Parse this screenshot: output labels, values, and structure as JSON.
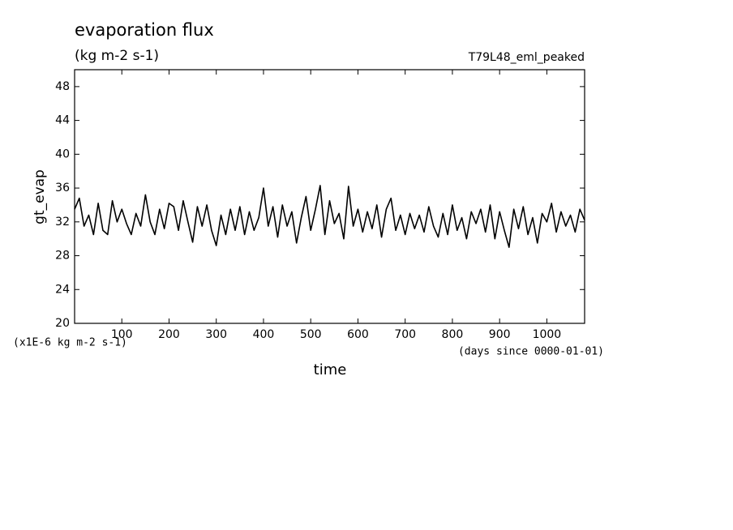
{
  "chart_data": {
    "type": "line",
    "title": "evaporation flux",
    "subtitle": "(kg m-2 s-1)",
    "annotation": "T79L48_eml_peaked",
    "ylabel": "gt_evap",
    "xlabel": "time",
    "yunit": "(x1E-6 kg m-2 s-1)",
    "xunit": "(days since 0000-01-01)",
    "color": "#000000",
    "xlim": [
      0,
      1080
    ],
    "ylim": [
      20,
      50
    ],
    "xticks": [
      100,
      200,
      300,
      400,
      500,
      600,
      700,
      800,
      900,
      1000
    ],
    "yticks": [
      20,
      24,
      28,
      32,
      36,
      40,
      44,
      48
    ],
    "x": [
      0,
      10,
      20,
      30,
      40,
      50,
      60,
      70,
      80,
      90,
      100,
      110,
      120,
      130,
      140,
      150,
      160,
      170,
      180,
      190,
      200,
      210,
      220,
      230,
      240,
      250,
      260,
      270,
      280,
      290,
      300,
      310,
      320,
      330,
      340,
      350,
      360,
      370,
      380,
      390,
      400,
      410,
      420,
      430,
      440,
      450,
      460,
      470,
      480,
      490,
      500,
      510,
      520,
      530,
      540,
      550,
      560,
      570,
      580,
      590,
      600,
      610,
      620,
      630,
      640,
      650,
      660,
      670,
      680,
      690,
      700,
      710,
      720,
      730,
      740,
      750,
      760,
      770,
      780,
      790,
      800,
      810,
      820,
      830,
      840,
      850,
      860,
      870,
      880,
      890,
      900,
      910,
      920,
      930,
      940,
      950,
      960,
      970,
      980,
      990,
      1000,
      1010,
      1020,
      1030,
      1040,
      1050,
      1060,
      1070,
      1080
    ],
    "values": [
      33.5,
      34.8,
      31.5,
      32.8,
      30.5,
      34.2,
      31,
      30.5,
      34.5,
      32,
      33.5,
      31.8,
      30.5,
      33,
      31.5,
      35.2,
      32,
      30.5,
      33.5,
      31.2,
      34.2,
      33.8,
      31,
      34.5,
      32,
      29.6,
      33.8,
      31.5,
      34,
      31,
      29.2,
      32.8,
      30.5,
      33.5,
      31,
      33.8,
      30.5,
      33.2,
      31,
      32.5,
      36,
      31.5,
      33.8,
      30.2,
      34,
      31.5,
      33.2,
      29.5,
      32.5,
      35,
      31,
      33.5,
      36.3,
      30.5,
      34.5,
      31.8,
      33,
      30,
      36.2,
      31.5,
      33.5,
      30.8,
      33.2,
      31.2,
      34,
      30.2,
      33.5,
      34.8,
      31,
      32.8,
      30.5,
      33,
      31.2,
      32.8,
      30.8,
      33.8,
      31.5,
      30.2,
      33,
      30.5,
      34,
      31,
      32.5,
      30,
      33.2,
      31.8,
      33.5,
      30.8,
      34,
      30,
      33.2,
      31,
      29,
      33.5,
      31.2,
      33.8,
      30.5,
      32.5,
      29.5,
      33,
      32,
      34.2,
      30.8,
      33.2,
      31.5,
      32.8,
      30.8,
      33.5,
      32.2
    ]
  }
}
